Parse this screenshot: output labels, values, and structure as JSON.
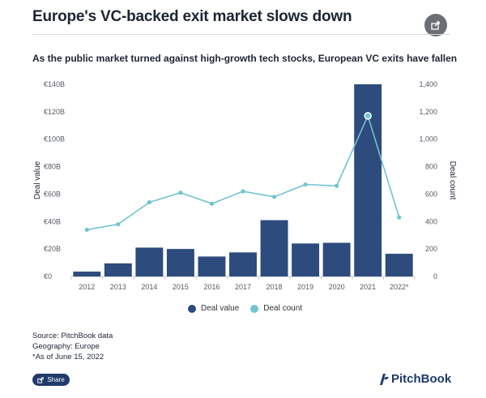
{
  "header": {
    "title": "Europe's VC-backed exit market slows down",
    "subtitle": "As the public market turned against high-growth tech stocks, European VC exits have fallen"
  },
  "footer": {
    "source": "Source: PitchBook data",
    "geography": "Geography: Europe",
    "note": "*As of June 15, 2022",
    "share_label": "Share",
    "brand": "PitchBook"
  },
  "icons": {
    "top_share": "share-icon",
    "logo": "pitchbook-logo-icon"
  },
  "colors": {
    "bar": "#2d4b7c",
    "line": "#6fc4cf",
    "text": "#1d2433",
    "axis": "#555a63"
  },
  "chart_data": {
    "type": "bar",
    "categories": [
      "2012",
      "2013",
      "2014",
      "2015",
      "2016",
      "2017",
      "2018",
      "2019",
      "2020",
      "2021",
      "2022*"
    ],
    "series": [
      {
        "name": "Deal value",
        "type": "bar",
        "axis": "left",
        "values": [
          3.5,
          9.5,
          21,
          20,
          14.5,
          17.5,
          41,
          24,
          24.5,
          140,
          16.5
        ]
      },
      {
        "name": "Deal count",
        "type": "line",
        "axis": "right",
        "values": [
          340,
          380,
          540,
          610,
          530,
          620,
          580,
          670,
          660,
          1170,
          430
        ]
      }
    ],
    "y_left": {
      "label": "Deal value",
      "ticks": [
        "€0",
        "€20B",
        "€40B",
        "€60B",
        "€80B",
        "€100B",
        "€120B",
        "€140B"
      ],
      "ylim": [
        0,
        140
      ]
    },
    "y_right": {
      "label": "Deal count",
      "ticks": [
        "0",
        "200",
        "400",
        "600",
        "800",
        "1,000",
        "1,200",
        "1,400"
      ],
      "ylim": [
        0,
        1400
      ]
    },
    "legend": [
      "Deal value",
      "Deal count"
    ],
    "legend_position": "bottom",
    "grid": false
  }
}
